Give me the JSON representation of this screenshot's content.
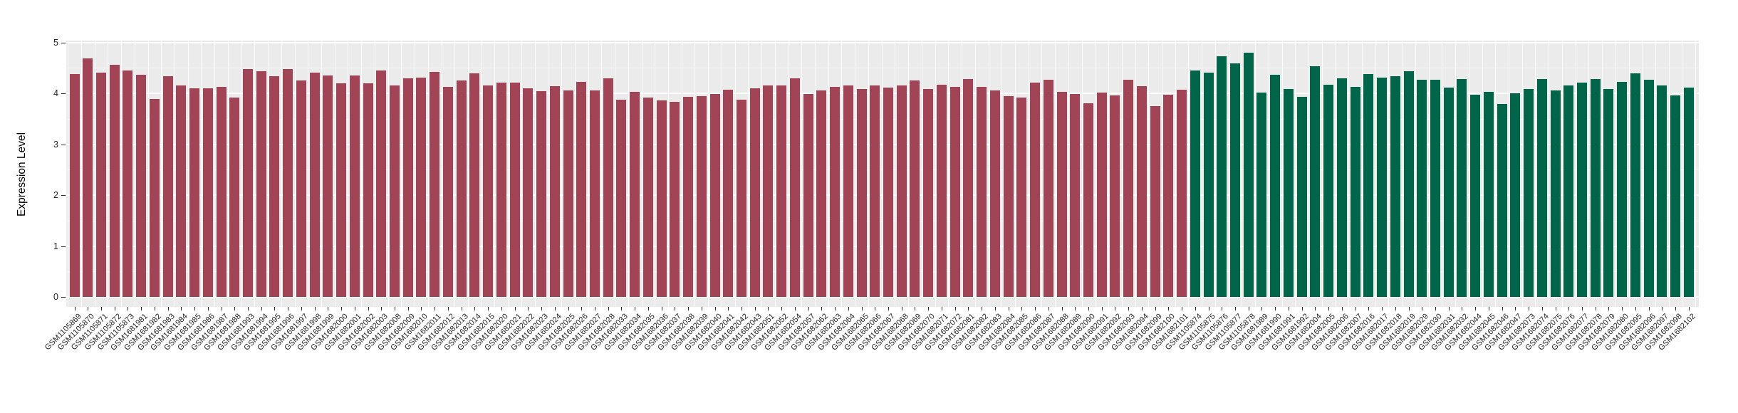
{
  "chart_data": {
    "type": "bar",
    "title": "",
    "xlabel": "",
    "ylabel": "Expression Level",
    "ylim": [
      0,
      5
    ],
    "yticks": [
      "0",
      "1",
      "2",
      "3",
      "4",
      "5"
    ],
    "grid": true,
    "legend_position": "none",
    "panel_background": "#EBEBEB",
    "gridline_color": "#FFFFFF",
    "axis_text_color": "#262626",
    "tick_mark_color": "#333333",
    "series": [
      {
        "name": "group-1-red",
        "color": "#A04456",
        "categories": [
          "GSM1105869",
          "GSM1105870",
          "GSM1105871",
          "GSM1105872",
          "GSM1105873",
          "GSM1681981",
          "GSM1681982",
          "GSM1681983",
          "GSM1681984",
          "GSM1681985",
          "GSM1681986",
          "GSM1681987",
          "GSM1681988",
          "GSM1681993",
          "GSM1681994",
          "GSM1681995",
          "GSM1681996",
          "GSM1681997",
          "GSM1681998",
          "GSM1681999",
          "GSM1682000",
          "GSM1682001",
          "GSM1682002",
          "GSM1682003",
          "GSM1682008",
          "GSM1682009",
          "GSM1682010",
          "GSM1682011",
          "GSM1682012",
          "GSM1682013",
          "GSM1682014",
          "GSM1682015",
          "GSM1682020",
          "GSM1682021",
          "GSM1682022",
          "GSM1682023",
          "GSM1682024",
          "GSM1682025",
          "GSM1682026",
          "GSM1682027",
          "GSM1682028",
          "GSM1682033",
          "GSM1682034",
          "GSM1682035",
          "GSM1682036",
          "GSM1682037",
          "GSM1682038",
          "GSM1682039",
          "GSM1682040",
          "GSM1682041",
          "GSM1682042",
          "GSM1682043",
          "GSM1682051",
          "GSM1682052",
          "GSM1682054",
          "GSM1682057",
          "GSM1682062",
          "GSM1682063",
          "GSM1682064",
          "GSM1682065",
          "GSM1682066",
          "GSM1682067",
          "GSM1682068",
          "GSM1682069",
          "GSM1682070",
          "GSM1682071",
          "GSM1682072",
          "GSM1682081",
          "GSM1682082",
          "GSM1682083",
          "GSM1682084",
          "GSM1682085",
          "GSM1682086",
          "GSM1682087",
          "GSM1682088",
          "GSM1682089",
          "GSM1682090",
          "GSM1682091",
          "GSM1682092",
          "GSM1682093",
          "GSM1682094",
          "GSM1682099",
          "GSM1682100",
          "GSM1682101"
        ],
        "values": [
          4.38,
          4.68,
          4.41,
          4.56,
          4.45,
          4.36,
          3.89,
          4.34,
          4.16,
          4.1,
          4.1,
          4.13,
          3.92,
          4.48,
          4.43,
          4.34,
          4.47,
          4.25,
          4.41,
          4.35,
          4.19,
          4.35,
          4.2,
          4.45,
          4.15,
          4.29,
          4.31,
          4.42,
          4.12,
          4.25,
          4.39,
          4.15,
          4.21,
          4.21,
          4.1,
          4.04,
          4.14,
          4.06,
          4.22,
          4.06,
          4.29,
          3.88,
          4.03,
          3.91,
          3.86,
          3.83,
          3.93,
          3.94,
          3.98,
          4.07,
          3.88,
          4.1,
          4.15,
          4.15,
          4.3,
          3.99,
          4.06,
          4.13,
          4.16,
          4.08,
          4.15,
          4.11,
          4.16,
          4.25,
          4.09,
          4.17,
          4.13,
          4.28,
          4.12,
          4.06,
          3.94,
          3.92,
          4.21,
          4.26,
          4.03,
          3.99,
          3.8,
          4.01,
          3.96,
          4.27,
          4.14,
          3.75,
          3.97,
          4.07
        ]
      },
      {
        "name": "group-2-green",
        "color": "#006549",
        "categories": [
          "GSM1105874",
          "GSM1105875",
          "GSM1105876",
          "GSM1105877",
          "GSM1105878",
          "GSM1681989",
          "GSM1681990",
          "GSM1681991",
          "GSM1681992",
          "GSM1682004",
          "GSM1682005",
          "GSM1682006",
          "GSM1682007",
          "GSM1682016",
          "GSM1682017",
          "GSM1682018",
          "GSM1682019",
          "GSM1682029",
          "GSM1682030",
          "GSM1682031",
          "GSM1682032",
          "GSM1682044",
          "GSM1682045",
          "GSM1682046",
          "GSM1682047",
          "GSM1682073",
          "GSM1682074",
          "GSM1682075",
          "GSM1682076",
          "GSM1682077",
          "GSM1682078",
          "GSM1682079",
          "GSM1682080",
          "GSM1682095",
          "GSM1682096",
          "GSM1682097",
          "GSM1682098",
          "GSM1682102"
        ],
        "values": [
          4.45,
          4.41,
          4.73,
          4.59,
          4.8,
          4.02,
          4.36,
          4.09,
          3.93,
          4.53,
          4.17,
          4.29,
          4.12,
          4.38,
          4.31,
          4.34,
          4.44,
          4.26,
          4.27,
          4.11,
          4.28,
          3.97,
          4.03,
          3.79,
          4.0,
          4.09,
          4.28,
          4.06,
          4.15,
          4.21,
          4.28,
          4.08,
          4.22,
          4.39,
          4.27,
          4.16,
          3.96,
          4.11
        ]
      }
    ]
  }
}
